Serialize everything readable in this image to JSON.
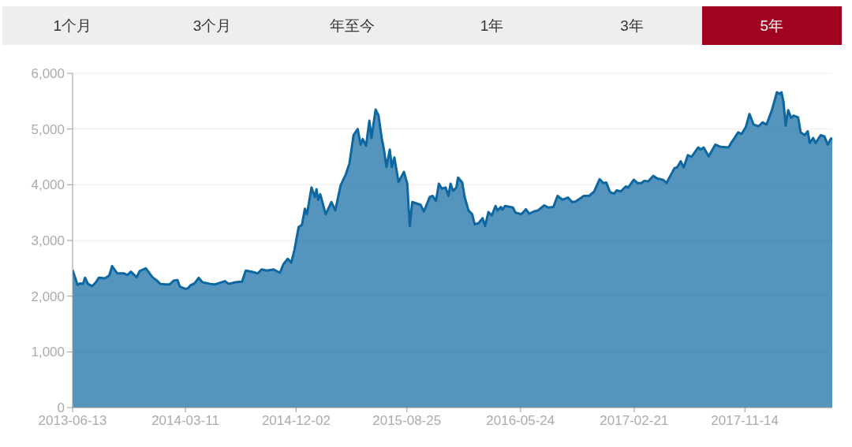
{
  "chart_data": {
    "type": "area",
    "annotations": [
      "1个月",
      "3个月",
      "年至今",
      "1年",
      "3年",
      "5年"
    ],
    "x": [
      "2013-06-13",
      "2013-06-25",
      "2013-07-01",
      "2013-07-08",
      "2013-07-13",
      "2013-07-20",
      "2013-07-30",
      "2013-08-08",
      "2013-08-15",
      "2013-08-30",
      "2013-09-09",
      "2013-09-16",
      "2013-09-28",
      "2013-10-14",
      "2013-10-23",
      "2013-10-31",
      "2013-11-14",
      "2013-11-21",
      "2013-12-06",
      "2013-12-22",
      "2013-12-31",
      "2014-01-10",
      "2014-01-23",
      "2014-02-01",
      "2014-02-11",
      "2014-02-20",
      "2014-02-26",
      "2014-03-11",
      "2014-03-17",
      "2014-03-24",
      "2014-04-02",
      "2014-04-12",
      "2014-04-21",
      "2014-05-10",
      "2014-05-20",
      "2014-05-29",
      "2014-06-14",
      "2014-06-23",
      "2014-07-09",
      "2014-07-25",
      "2014-08-03",
      "2014-08-16",
      "2014-09-01",
      "2014-09-10",
      "2014-09-23",
      "2014-10-09",
      "2014-10-24",
      "2014-11-02",
      "2014-11-12",
      "2014-11-20",
      "2014-11-28",
      "2014-12-08",
      "2014-12-16",
      "2014-12-23",
      "2014-12-28",
      "2015-01-08",
      "2015-01-16",
      "2015-01-20",
      "2015-01-24",
      "2015-01-29",
      "2015-02-11",
      "2015-02-25",
      "2015-03-06",
      "2015-03-19",
      "2015-03-31",
      "2015-04-09",
      "2015-04-19",
      "2015-04-29",
      "2015-05-06",
      "2015-05-11",
      "2015-05-19",
      "2015-05-27",
      "2015-06-01",
      "2015-06-11",
      "2015-06-18",
      "2015-06-26",
      "2015-07-01",
      "2015-07-07",
      "2015-07-15",
      "2015-07-20",
      "2015-07-26",
      "2015-08-05",
      "2015-08-18",
      "2015-08-26",
      "2015-09-01",
      "2015-09-07",
      "2015-09-27",
      "2015-10-05",
      "2015-10-19",
      "2015-10-26",
      "2015-11-03",
      "2015-11-10",
      "2015-11-17",
      "2015-11-26",
      "2015-12-03",
      "2015-12-08",
      "2015-12-14",
      "2015-12-22",
      "2015-12-26",
      "2016-01-05",
      "2016-01-11",
      "2016-01-20",
      "2016-01-29",
      "2016-02-04",
      "2016-02-13",
      "2016-02-23",
      "2016-02-29",
      "2016-03-08",
      "2016-03-16",
      "2016-03-25",
      "2016-03-30",
      "2016-04-07",
      "2016-04-10",
      "2016-04-17",
      "2016-05-06",
      "2016-05-12",
      "2016-05-26",
      "2016-06-06",
      "2016-06-14",
      "2016-06-25",
      "2016-07-05",
      "2016-07-20",
      "2016-07-30",
      "2016-08-11",
      "2016-08-21",
      "2016-09-02",
      "2016-09-15",
      "2016-09-25",
      "2016-10-04",
      "2016-10-23",
      "2016-11-05",
      "2016-11-17",
      "2016-11-30",
      "2016-12-09",
      "2016-12-16",
      "2016-12-25",
      "2017-01-04",
      "2017-01-10",
      "2017-01-20",
      "2017-02-01",
      "2017-02-07",
      "2017-02-20",
      "2017-03-01",
      "2017-03-11",
      "2017-03-17",
      "2017-03-27",
      "2017-04-08",
      "2017-04-18",
      "2017-05-01",
      "2017-05-10",
      "2017-05-16",
      "2017-05-29",
      "2017-06-04",
      "2017-06-13",
      "2017-06-20",
      "2017-06-30",
      "2017-07-09",
      "2017-07-21",
      "2017-07-25",
      "2017-07-31",
      "2017-08-07",
      "2017-08-19",
      "2017-09-04",
      "2017-09-17",
      "2017-10-06",
      "2017-10-12",
      "2017-10-29",
      "2017-11-06",
      "2017-11-16",
      "2017-11-25",
      "2017-12-05",
      "2017-12-17",
      "2017-12-27",
      "2018-01-05",
      "2018-01-18",
      "2018-01-30",
      "2018-02-06",
      "2018-02-10",
      "2018-02-15",
      "2018-02-20",
      "2018-02-26",
      "2018-03-05",
      "2018-03-11",
      "2018-03-22",
      "2018-03-28",
      "2018-04-07",
      "2018-04-14",
      "2018-04-19",
      "2018-04-27",
      "2018-05-03",
      "2018-05-15",
      "2018-05-24",
      "2018-06-01",
      "2018-06-09",
      "2018-06-12"
    ],
    "values": [
      2470,
      2200,
      2230,
      2220,
      2330,
      2220,
      2180,
      2250,
      2330,
      2320,
      2370,
      2540,
      2410,
      2410,
      2380,
      2440,
      2340,
      2450,
      2500,
      2340,
      2290,
      2220,
      2210,
      2210,
      2280,
      2290,
      2170,
      2130,
      2140,
      2200,
      2230,
      2330,
      2250,
      2220,
      2210,
      2230,
      2270,
      2220,
      2250,
      2260,
      2460,
      2440,
      2410,
      2480,
      2460,
      2480,
      2420,
      2580,
      2670,
      2600,
      2830,
      3240,
      3280,
      3570,
      3470,
      3950,
      3780,
      3920,
      3730,
      3830,
      3470,
      3690,
      3540,
      3990,
      4180,
      4380,
      4890,
      5000,
      4720,
      4820,
      4700,
      5150,
      4840,
      5350,
      5240,
      4820,
      4630,
      4320,
      4630,
      4320,
      4490,
      4050,
      4230,
      4020,
      3260,
      3690,
      3640,
      3520,
      3780,
      3800,
      3710,
      4020,
      3930,
      3950,
      3800,
      4020,
      3890,
      3950,
      4130,
      4040,
      3780,
      3540,
      3470,
      3290,
      3310,
      3400,
      3260,
      3510,
      3450,
      3620,
      3540,
      3600,
      3550,
      3620,
      3590,
      3500,
      3470,
      3560,
      3480,
      3520,
      3540,
      3630,
      3590,
      3600,
      3800,
      3730,
      3770,
      3690,
      3700,
      3800,
      3800,
      3880,
      4100,
      4030,
      4040,
      3870,
      3840,
      3900,
      3880,
      3970,
      3950,
      4090,
      4030,
      4030,
      4070,
      4060,
      4160,
      4110,
      4090,
      4030,
      4120,
      4300,
      4310,
      4420,
      4310,
      4530,
      4500,
      4630,
      4670,
      4630,
      4670,
      4510,
      4720,
      4680,
      4670,
      4750,
      4940,
      4910,
      5030,
      5270,
      5080,
      5050,
      5120,
      5080,
      5340,
      5660,
      5630,
      5660,
      5480,
      5060,
      5340,
      5200,
      5240,
      5210,
      4940,
      4890,
      4960,
      4750,
      4840,
      4750,
      4890,
      4870,
      4720,
      4830,
      4810
    ],
    "color": "#0d67a1",
    "xlim": [
      "2013-06-13",
      "2018-06-12"
    ],
    "xticks": [
      "2013-06-13",
      "2014-03-11",
      "2014-12-02",
      "2015-08-25",
      "2016-05-24",
      "2017-02-21",
      "2017-11-14"
    ],
    "ylim": [
      0,
      6000
    ],
    "yticks": [
      0,
      {
        "value": 1000,
        "label": "1,000"
      },
      {
        "value": 2000,
        "label": "2,000"
      },
      {
        "value": 3000,
        "label": "3,000"
      },
      {
        "value": 4000,
        "label": "4,000"
      },
      {
        "value": 5000,
        "label": "5,000"
      },
      {
        "value": 6000,
        "label": "6,000"
      }
    ],
    "grid": "y"
  }
}
